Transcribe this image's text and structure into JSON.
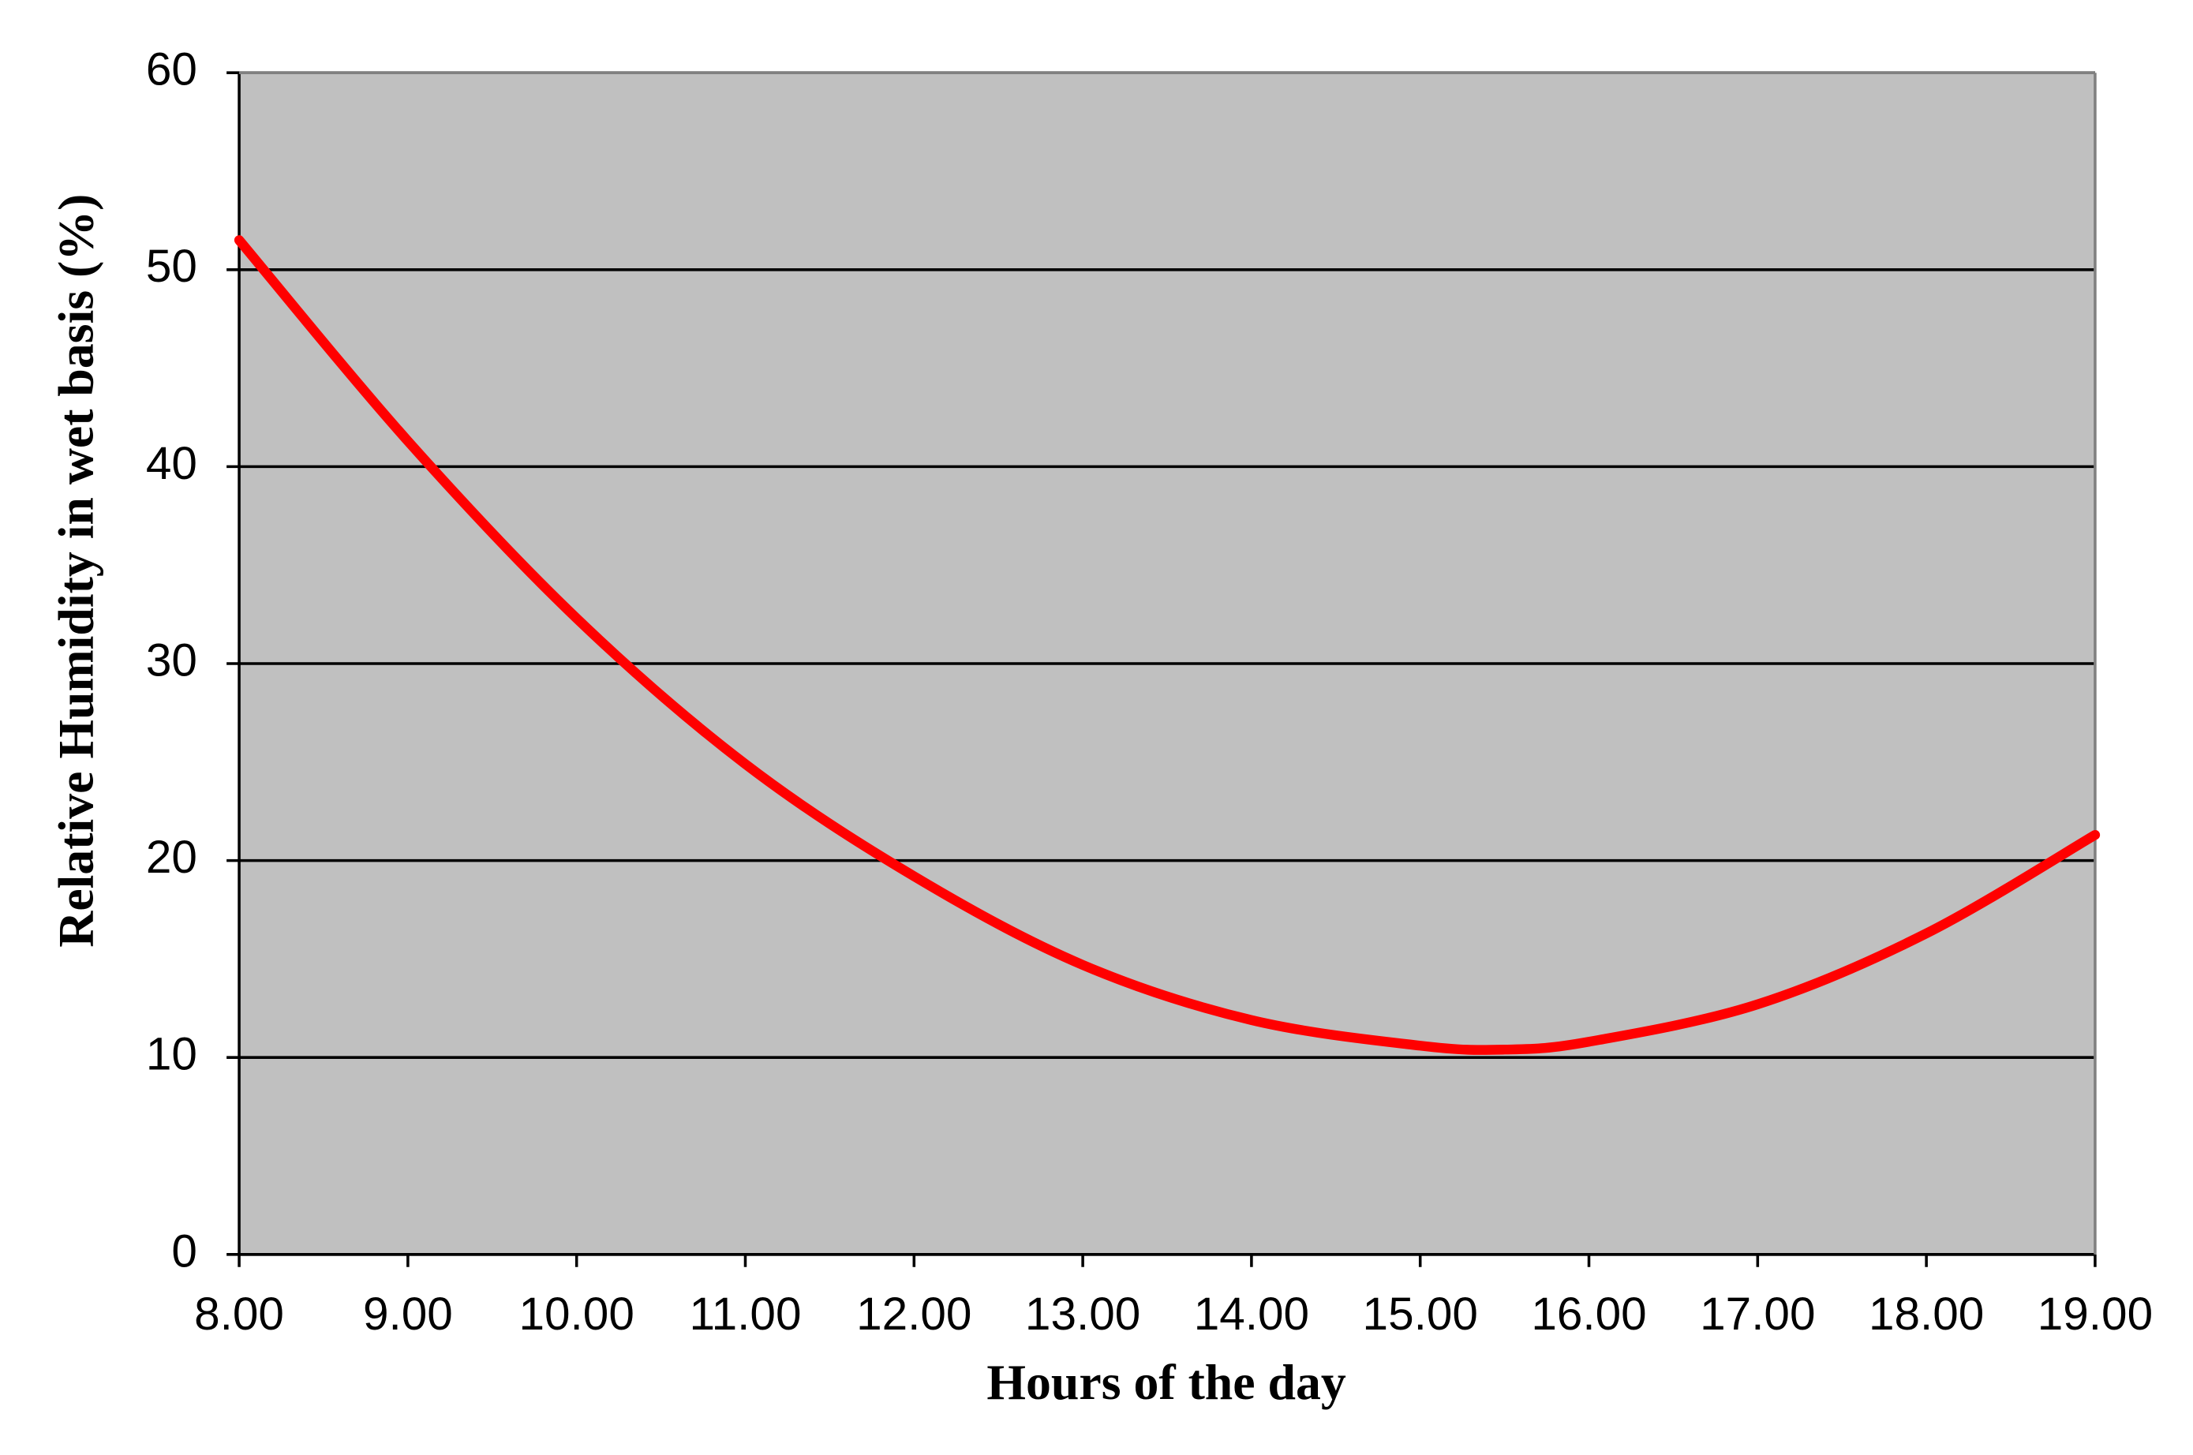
{
  "chart_data": {
    "type": "line",
    "x_label": "Hours of the day",
    "y_label": "Relative Humidity in wet basis (%)",
    "x": [
      8,
      9,
      10,
      11,
      12,
      13,
      14,
      15,
      15.5,
      16,
      17,
      18,
      19
    ],
    "series": [
      {
        "name": "Relative humidity",
        "color": "#ff0000",
        "values": [
          51.5,
          41.3,
          32.3,
          24.9,
          19.2,
          14.7,
          11.9,
          10.6,
          10.4,
          10.8,
          12.7,
          16.3,
          21.3
        ]
      }
    ],
    "xlim": [
      8,
      19
    ],
    "xticks": [
      {
        "value": 8,
        "label": "8.00"
      },
      {
        "value": 9,
        "label": "9.00"
      },
      {
        "value": 10,
        "label": "10.00"
      },
      {
        "value": 11,
        "label": "11.00"
      },
      {
        "value": 12,
        "label": "12.00"
      },
      {
        "value": 13,
        "label": "13.00"
      },
      {
        "value": 14,
        "label": "14.00"
      },
      {
        "value": 15,
        "label": "15.00"
      },
      {
        "value": 16,
        "label": "16.00"
      },
      {
        "value": 17,
        "label": "17.00"
      },
      {
        "value": 18,
        "label": "18.00"
      },
      {
        "value": 19,
        "label": "19.00"
      }
    ],
    "ylim": [
      0,
      60
    ],
    "yticks": [
      0,
      10,
      20,
      30,
      40,
      50,
      60
    ],
    "grid": true,
    "plot_background": "#c0c0c0"
  }
}
